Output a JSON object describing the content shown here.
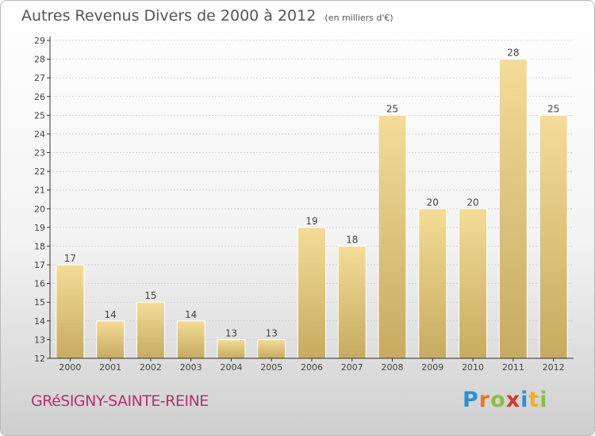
{
  "title": "Autres Revenus Divers de 2000 à 2012",
  "subtitle": "(en milliers d'€)",
  "location": "GRéSIGNY-SAINTE-REINE",
  "logo": {
    "letters": [
      "P",
      "r",
      "o",
      "x",
      "i",
      "t",
      "i"
    ],
    "colors": [
      "#2f8fd2",
      "#e0772c",
      "#8cbf3f",
      "#d8362f",
      "#2f8fd2",
      "#e9b21f",
      "#8cbf3f"
    ]
  },
  "colors": {
    "bar_light": "#f4dc98",
    "bar_dark": "#c6ab60",
    "axis": "#333333",
    "grid": "#c8c8c8"
  },
  "chart_data": {
    "type": "bar",
    "categories": [
      "2000",
      "2001",
      "2002",
      "2003",
      "2004",
      "2005",
      "2006",
      "2007",
      "2008",
      "2009",
      "2010",
      "2011",
      "2012"
    ],
    "values": [
      17,
      14,
      15,
      14,
      13,
      13,
      19,
      18,
      25,
      20,
      20,
      28,
      25
    ],
    "ylim": [
      12,
      29
    ],
    "yticks": [
      12,
      13,
      14,
      15,
      16,
      17,
      18,
      19,
      20,
      21,
      22,
      23,
      24,
      25,
      26,
      27,
      28,
      29
    ],
    "grid": true,
    "data_labels": true
  }
}
